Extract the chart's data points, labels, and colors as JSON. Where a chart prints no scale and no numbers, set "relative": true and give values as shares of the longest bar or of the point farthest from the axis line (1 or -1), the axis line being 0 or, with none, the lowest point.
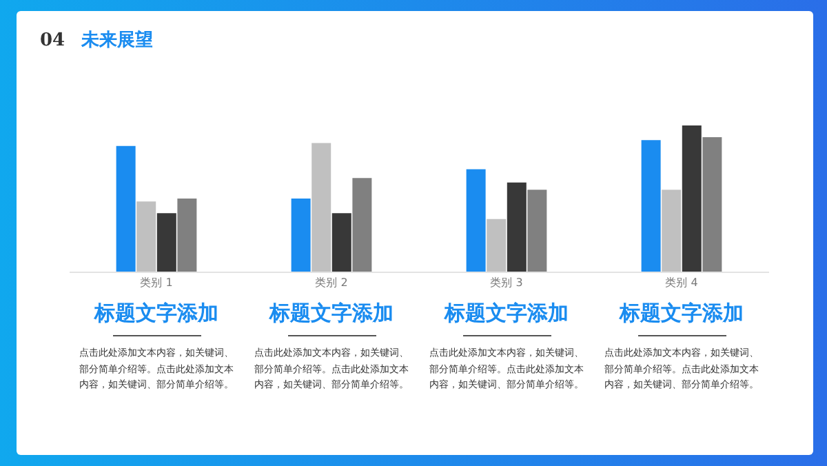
{
  "chart_data": {
    "type": "bar",
    "title": "未来展望",
    "relative": true,
    "categories": [
      "类别 1",
      "类别 2",
      "类别 3",
      "类别 4"
    ],
    "series": [
      {
        "color": "#1a8cf0",
        "values": [
          0.86,
          0.5,
          0.7,
          0.9
        ]
      },
      {
        "color": "#c0c0c0",
        "values": [
          0.48,
          0.88,
          0.36,
          0.56
        ]
      },
      {
        "color": "#383838",
        "values": [
          0.4,
          0.4,
          0.61,
          1
        ]
      },
      {
        "color": "#808080",
        "values": [
          0.5,
          0.64,
          0.56,
          0.92
        ]
      }
    ],
    "annotations": [
      "04",
      "标题文字添加",
      "点击此处添加文本内容，如关键词、部分简单介绍等。点击此处添加文本内容，如关键词、部分简单介绍等。",
      "标题文字添加",
      "点击此处添加文本内容，如关键词、部分简单介绍等。点击此处添加文本内容，如关键词、部分简单介绍等。",
      "标题文字添加",
      "点击此处添加文本内容，如关键词、部分简单介绍等。点击此处添加文本内容，如关键词、部分简单介绍等。",
      "标题文字添加",
      "点击此处添加文本内容，如关键词、部分简单介绍等。点击此处添加文本内容，如关键词、部分简单介绍等。"
    ]
  }
}
